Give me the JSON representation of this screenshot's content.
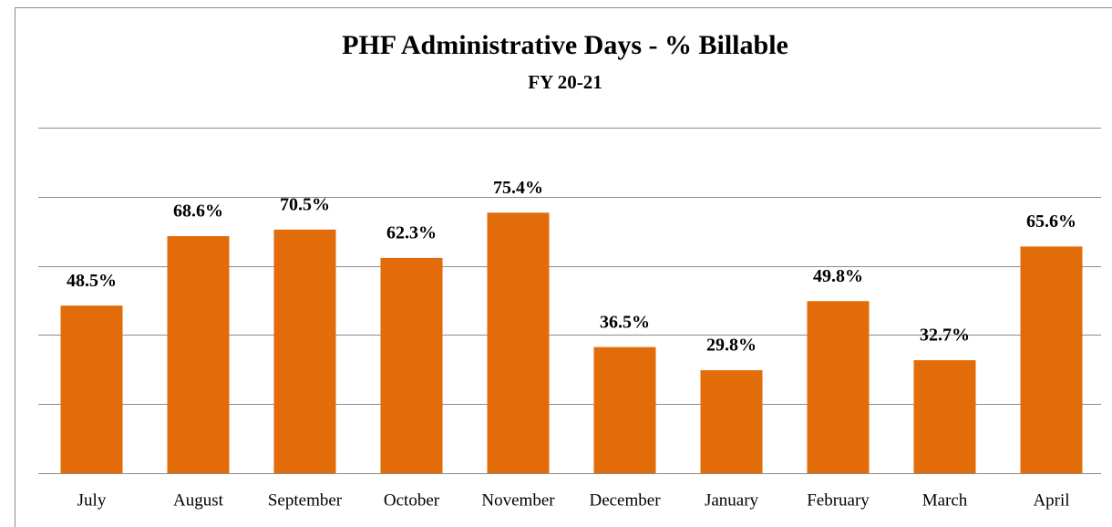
{
  "chart_data": {
    "type": "bar",
    "title": "PHF Administrative Days - % Billable",
    "subtitle": "FY 20-21",
    "categories": [
      "July",
      "August",
      "September",
      "October",
      "November",
      "December",
      "January",
      "February",
      "March",
      "April"
    ],
    "values": [
      48.5,
      68.6,
      70.5,
      62.3,
      75.4,
      36.5,
      29.8,
      49.8,
      32.7,
      65.6
    ],
    "value_labels": [
      "48.5%",
      "68.6%",
      "70.5%",
      "62.3%",
      "75.4%",
      "36.5%",
      "29.8%",
      "49.8%",
      "32.7%",
      "65.6%"
    ],
    "color": "#e36c0a",
    "ylim": [
      0,
      100
    ],
    "yticks": [
      0,
      20,
      40,
      60,
      80,
      100
    ],
    "grid": true
  }
}
